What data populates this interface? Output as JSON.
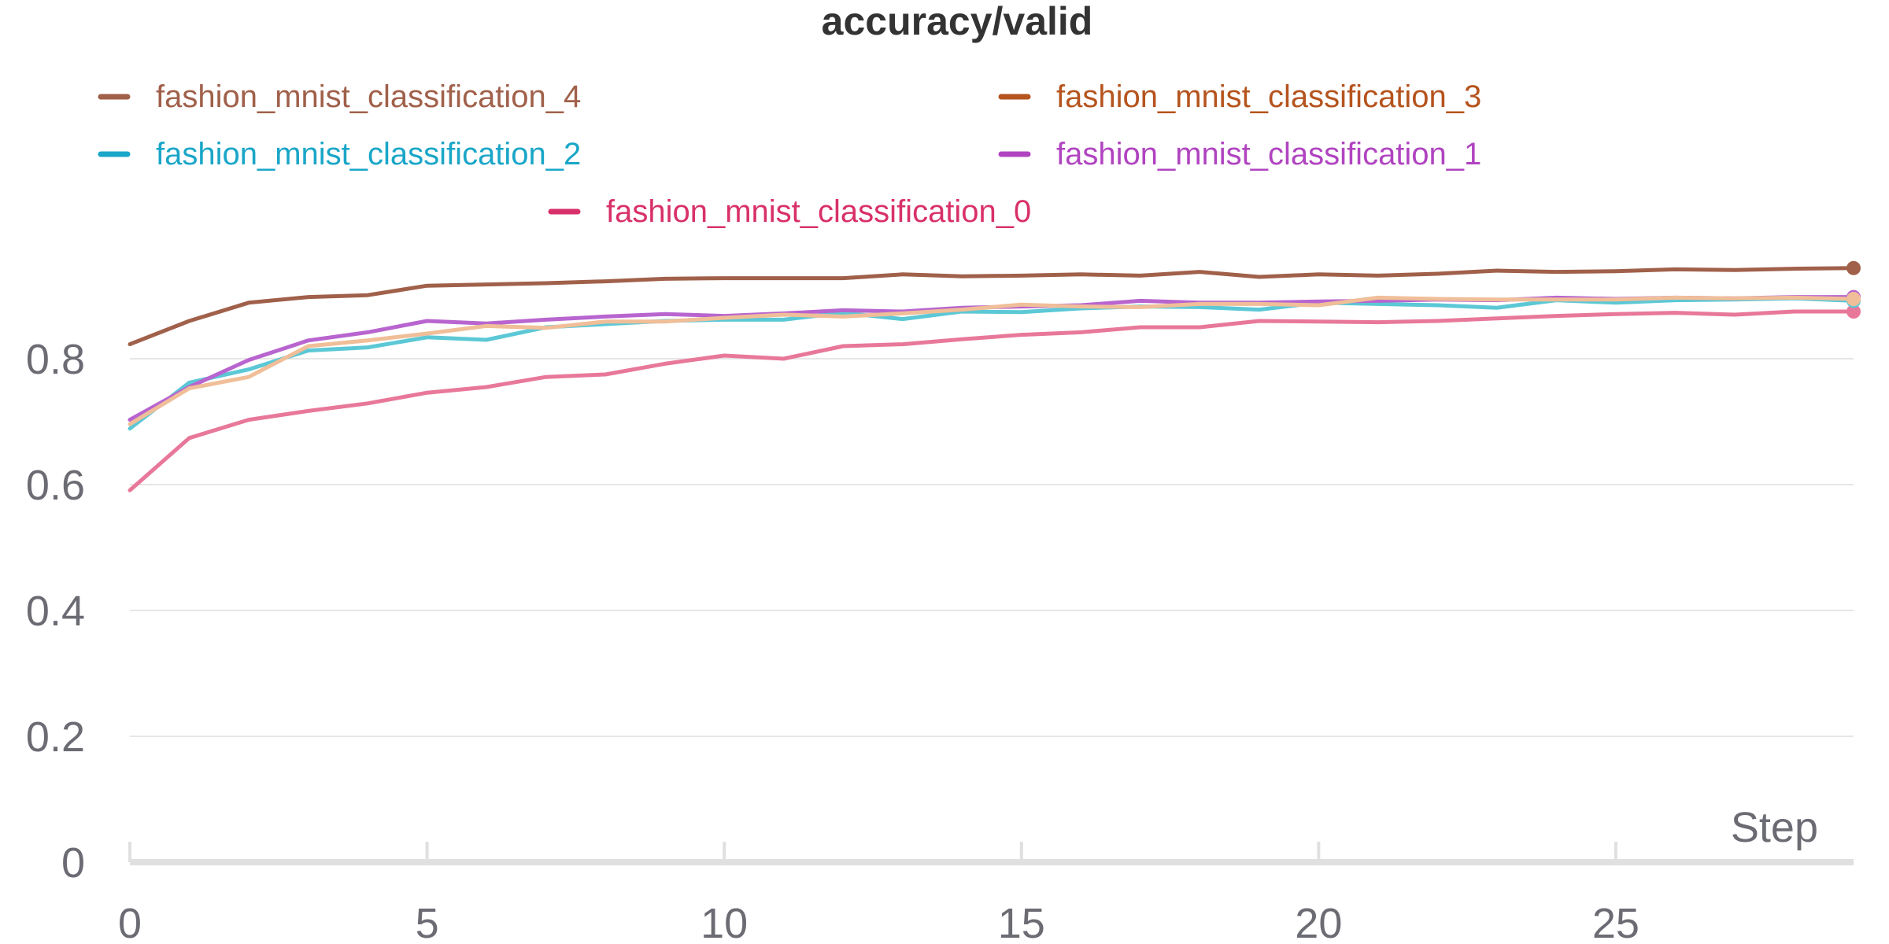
{
  "chart_data": {
    "type": "line",
    "title": "accuracy/valid",
    "xlabel": "Step",
    "ylabel": "",
    "xlim": [
      0,
      29
    ],
    "ylim": [
      0,
      1
    ],
    "x_ticks": [
      0,
      5,
      10,
      15,
      20,
      25
    ],
    "y_ticks": [
      0,
      0.2,
      0.4,
      0.6,
      0.8
    ],
    "grid": true,
    "legend_position": "top",
    "legend": [
      {
        "name": "fashion_mnist_classification_4",
        "color": "#a0604a"
      },
      {
        "name": "fashion_mnist_classification_3",
        "color": "#b5541e"
      },
      {
        "name": "fashion_mnist_classification_2",
        "color": "#1aa6c8"
      },
      {
        "name": "fashion_mnist_classification_1",
        "color": "#b044c0"
      },
      {
        "name": "fashion_mnist_classification_0",
        "color": "#d8306a"
      }
    ],
    "x": [
      0,
      1,
      2,
      3,
      4,
      5,
      6,
      7,
      8,
      9,
      10,
      11,
      12,
      13,
      14,
      15,
      16,
      17,
      18,
      19,
      20,
      21,
      22,
      23,
      24,
      25,
      26,
      27,
      28,
      29
    ],
    "series": [
      {
        "name": "fashion_mnist_classification_0",
        "color": "#e8789a",
        "values": [
          0.591,
          0.674,
          0.703,
          0.717,
          0.729,
          0.746,
          0.755,
          0.771,
          0.775,
          0.792,
          0.805,
          0.8,
          0.82,
          0.823,
          0.831,
          0.838,
          0.842,
          0.85,
          0.85,
          0.86,
          0.859,
          0.858,
          0.86,
          0.864,
          0.868,
          0.871,
          0.873,
          0.87,
          0.875,
          0.875
        ]
      },
      {
        "name": "fashion_mnist_classification_2",
        "color": "#5cc8d6",
        "values": [
          0.689,
          0.762,
          0.783,
          0.813,
          0.818,
          0.834,
          0.83,
          0.85,
          0.855,
          0.86,
          0.862,
          0.862,
          0.873,
          0.863,
          0.875,
          0.874,
          0.88,
          0.883,
          0.882,
          0.878,
          0.889,
          0.887,
          0.885,
          0.881,
          0.893,
          0.889,
          0.893,
          0.894,
          0.896,
          0.892
        ]
      },
      {
        "name": "fashion_mnist_classification_1",
        "color": "#b865cf",
        "values": [
          0.703,
          0.755,
          0.798,
          0.829,
          0.842,
          0.86,
          0.856,
          0.862,
          0.867,
          0.871,
          0.868,
          0.872,
          0.877,
          0.875,
          0.881,
          0.883,
          0.885,
          0.892,
          0.889,
          0.889,
          0.891,
          0.892,
          0.894,
          0.893,
          0.897,
          0.895,
          0.897,
          0.896,
          0.898,
          0.898
        ]
      },
      {
        "name": "fashion_mnist_classification_3",
        "color": "#f0be98",
        "values": [
          0.696,
          0.753,
          0.771,
          0.82,
          0.829,
          0.84,
          0.852,
          0.849,
          0.859,
          0.859,
          0.865,
          0.87,
          0.867,
          0.872,
          0.878,
          0.886,
          0.883,
          0.882,
          0.887,
          0.887,
          0.885,
          0.897,
          0.895,
          0.894,
          0.894,
          0.894,
          0.897,
          0.896,
          0.897,
          0.895
        ]
      },
      {
        "name": "fashion_mnist_classification_4",
        "color": "#a0604a",
        "values": [
          0.823,
          0.86,
          0.889,
          0.898,
          0.901,
          0.916,
          0.918,
          0.92,
          0.923,
          0.927,
          0.928,
          0.928,
          0.928,
          0.934,
          0.931,
          0.932,
          0.934,
          0.932,
          0.938,
          0.93,
          0.934,
          0.932,
          0.935,
          0.94,
          0.938,
          0.939,
          0.942,
          0.941,
          0.943,
          0.944
        ]
      }
    ]
  }
}
